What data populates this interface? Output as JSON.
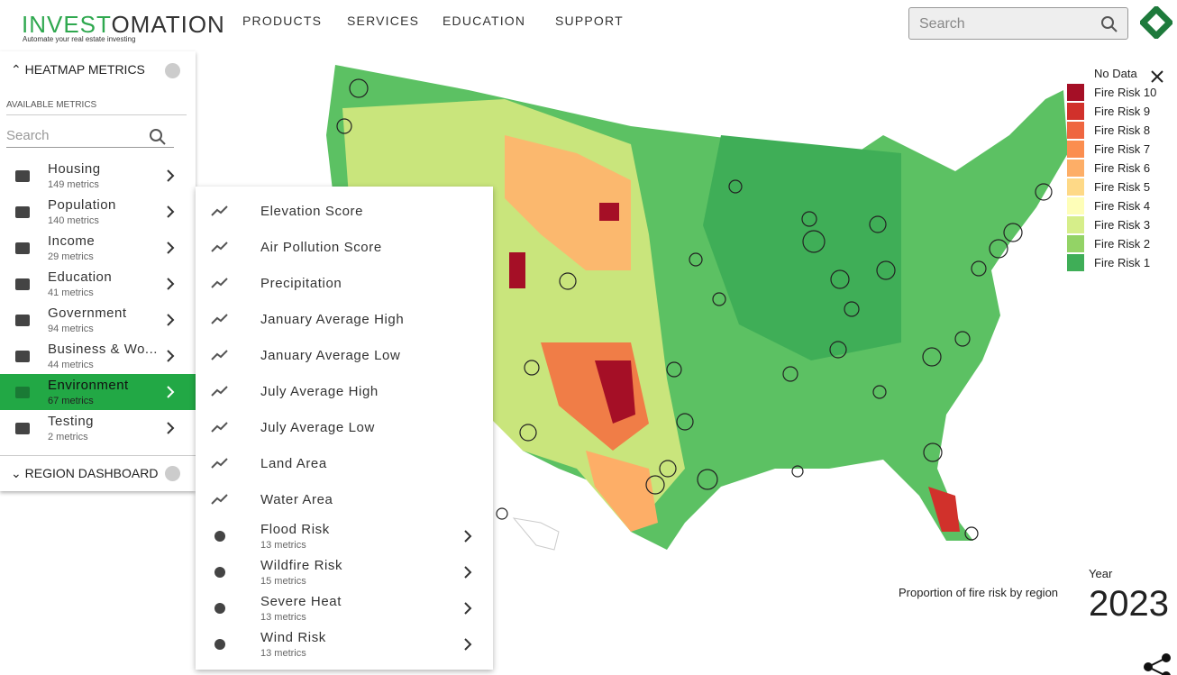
{
  "header": {
    "logo": {
      "part1": "INVEST",
      "part2": "OMATION"
    },
    "tagline": "Automate your real estate investing",
    "nav": [
      "PRODUCTS",
      "SERVICES",
      "EDUCATION",
      "SUPPORT"
    ],
    "search_placeholder": "Search"
  },
  "sidebar": {
    "title": "HEATMAP METRICS",
    "subtitle": "AVAILABLE METRICS",
    "search_placeholder": "Search",
    "categories": [
      {
        "name": "Housing",
        "count": "149 metrics"
      },
      {
        "name": "Population",
        "count": "140 metrics"
      },
      {
        "name": "Income",
        "count": "29 metrics"
      },
      {
        "name": "Education",
        "count": "41 metrics"
      },
      {
        "name": "Government",
        "count": "94 metrics"
      },
      {
        "name": "Business & Wo...",
        "count": "44 metrics"
      },
      {
        "name": "Environment",
        "count": "67 metrics"
      },
      {
        "name": "Testing",
        "count": "2 metrics"
      }
    ],
    "dashboard_title": "REGION DASHBOARD"
  },
  "submenu": {
    "items": [
      {
        "name": "Elevation Score"
      },
      {
        "name": "Air Pollution Score"
      },
      {
        "name": "Precipitation"
      },
      {
        "name": "January Average High"
      },
      {
        "name": "January Average Low"
      },
      {
        "name": "July Average High"
      },
      {
        "name": "July Average Low"
      },
      {
        "name": "Land Area"
      },
      {
        "name": "Water Area"
      },
      {
        "name": "Flood Risk",
        "count": "13 metrics"
      },
      {
        "name": "Wildfire Risk",
        "count": "15 metrics"
      },
      {
        "name": "Severe Heat",
        "count": "13 metrics"
      },
      {
        "name": "Wind Risk",
        "count": "13 metrics"
      }
    ]
  },
  "legend": {
    "no_data": "No Data",
    "items": [
      {
        "label": "Fire Risk 10",
        "color": "#a50f26"
      },
      {
        "label": "Fire Risk 9",
        "color": "#d1312b"
      },
      {
        "label": "Fire Risk 8",
        "color": "#ef6640"
      },
      {
        "label": "Fire Risk 7",
        "color": "#fb8e4f"
      },
      {
        "label": "Fire Risk 6",
        "color": "#fdae67"
      },
      {
        "label": "Fire Risk 5",
        "color": "#fed987"
      },
      {
        "label": "Fire Risk 4",
        "color": "#fefeb8"
      },
      {
        "label": "Fire Risk 3",
        "color": "#d6ee8a"
      },
      {
        "label": "Fire Risk 2",
        "color": "#93d366"
      },
      {
        "label": "Fire Risk 1",
        "color": "#3fae57"
      }
    ]
  },
  "caption": "Proportion of fire risk by region",
  "year_label": "Year",
  "year": "2023"
}
